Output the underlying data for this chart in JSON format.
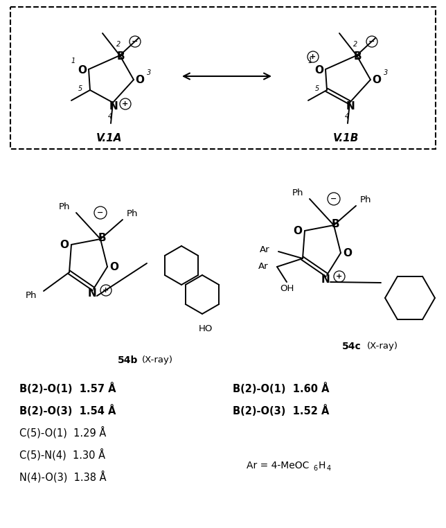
{
  "fig_width": 6.44,
  "fig_height": 7.62,
  "dpi": 100,
  "bg_color": "#ffffff",
  "v1a_label": "V.1A",
  "v1b_label": "V.1B",
  "bond_54b": [
    {
      "text": "B(2)-O(1)  1.57 Å",
      "bold": true
    },
    {
      "text": "B(2)-O(3)  1.54 Å",
      "bold": true
    },
    {
      "text": "C(5)-O(1)  1.29 Å",
      "bold": false
    },
    {
      "text": "C(5)-N(4)  1.30 Å",
      "bold": false
    },
    {
      "text": "N(4)-O(3)  1.38 Å",
      "bold": false
    }
  ],
  "bond_54c": [
    {
      "text": "B(2)-O(1)  1.60 Å",
      "bold": true
    },
    {
      "text": "B(2)-O(3)  1.52 Å",
      "bold": true
    }
  ]
}
